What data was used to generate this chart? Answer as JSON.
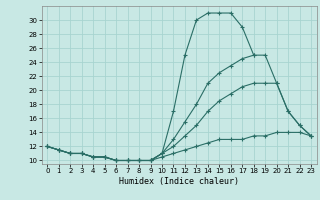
{
  "xlabel": "Humidex (Indice chaleur)",
  "bg_color": "#c8e8e4",
  "grid_color": "#a8d4d0",
  "line_color": "#2a6e66",
  "xlim": [
    -0.5,
    23.5
  ],
  "ylim": [
    9.5,
    32
  ],
  "xticks": [
    0,
    1,
    2,
    3,
    4,
    5,
    6,
    7,
    8,
    9,
    10,
    11,
    12,
    13,
    14,
    15,
    16,
    17,
    18,
    19,
    20,
    21,
    22,
    23
  ],
  "yticks": [
    10,
    12,
    14,
    16,
    18,
    20,
    22,
    24,
    26,
    28,
    30
  ],
  "line1_x": [
    0,
    1,
    2,
    3,
    4,
    5,
    6,
    7,
    8,
    9,
    10,
    11,
    12,
    13,
    14,
    15,
    16,
    17,
    18,
    19,
    20,
    21,
    22,
    23
  ],
  "line1_y": [
    12,
    11.5,
    11,
    11,
    10.5,
    10.5,
    10,
    10,
    10,
    10,
    10.5,
    11,
    11.5,
    12,
    12.5,
    13,
    13,
    13,
    13.5,
    13.5,
    14,
    14,
    14,
    13.5
  ],
  "line2_x": [
    0,
    1,
    2,
    3,
    4,
    5,
    6,
    7,
    8,
    9,
    10,
    11,
    12,
    13,
    14,
    15,
    16,
    17,
    18,
    19,
    20,
    21,
    22,
    23
  ],
  "line2_y": [
    12,
    11.5,
    11,
    11,
    10.5,
    10.5,
    10,
    10,
    10,
    10,
    11,
    12,
    13.5,
    15,
    17,
    18.5,
    19.5,
    20.5,
    21,
    21,
    21,
    17,
    15,
    13.5
  ],
  "line3_x": [
    0,
    1,
    2,
    3,
    4,
    5,
    6,
    7,
    8,
    9,
    10,
    11,
    12,
    13,
    14,
    15,
    16,
    17,
    18
  ],
  "line3_y": [
    12,
    11.5,
    11,
    11,
    10.5,
    10.5,
    10,
    10,
    10,
    10,
    11,
    17,
    25,
    30,
    31,
    31,
    31,
    29,
    25
  ],
  "line4_x": [
    0,
    1,
    2,
    3,
    4,
    5,
    6,
    7,
    8,
    9,
    10,
    11,
    12,
    13,
    14,
    15,
    16,
    17,
    18,
    19,
    20,
    21,
    22,
    23
  ],
  "line4_y": [
    12,
    11.5,
    11,
    11,
    10.5,
    10.5,
    10,
    10,
    10,
    10,
    11,
    13,
    15.5,
    18,
    21,
    22.5,
    23.5,
    24.5,
    25,
    25,
    21,
    17,
    15,
    13.5
  ]
}
